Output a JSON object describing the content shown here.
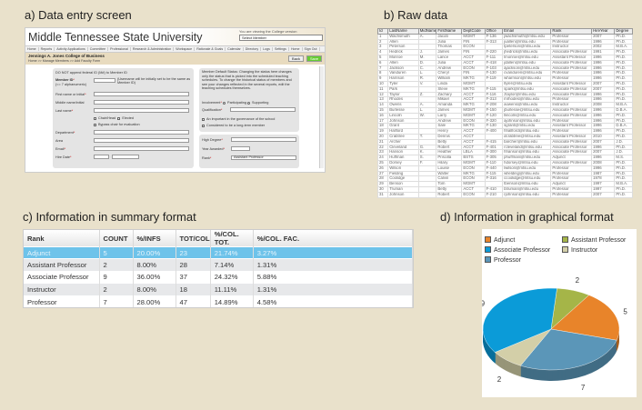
{
  "titles": {
    "a": "a) Data entry screen",
    "b": "b) Raw data",
    "c": "c) Information in summary format",
    "d": "d) Information in graphical format"
  },
  "screen": {
    "university": "Middle Tennessee State University",
    "viewing_note": "You are viewing the College version",
    "member_select": "Select Member",
    "nav": [
      "Home",
      "Reports",
      "Activity Applications",
      "Committee",
      "Professional",
      "Research & Administration",
      "Workspace",
      "Rationale & Goals",
      "Calendar",
      "Directory",
      "Logs",
      "Settings",
      "Home",
      "Sign Out"
    ],
    "college": "Jennings A. Jones College of Business",
    "breadcrumb": "Home >> Manage Members >> Add Faculty Form",
    "back": "Back",
    "save": "Save",
    "note": "DO NOT append federal ID (M#) to Member ID",
    "member_id": "Member ID",
    "member_id_hint": "(<= 7 alphanumeric)",
    "username_note": "(Username will be initially set to be the same as Member ID)",
    "first_name": "First name or initial",
    "middle_name": "Middle name/initial",
    "last_name": "Last name",
    "chair": "Chair/Head",
    "elected": "Elected",
    "bypass": "Bypass chair for evaluation",
    "department": "Department",
    "area": "Area",
    "email": "Email",
    "hire_date": "Hire Date",
    "status_note": "Member Default Status: Changing the status here changes only the status that is picked into the scheduled teaching schedules. To change the historical status of members and see your changes reflected in the several reports, edit the teaching schedules themselves.",
    "involvement": "Involvement",
    "participating": "Participating",
    "supporting": "Supporting",
    "qualification": "Qualification",
    "governance": "An important in the governance of the school",
    "long_term": "Considered to be a long-term member",
    "high_degree": "High Degree",
    "year_awarded": "Year Awarded",
    "rank": "Rank",
    "rank_value": "Assistant Professor"
  },
  "raw": {
    "headers": [
      "Id",
      "LastName",
      "MidName",
      "FirstName",
      "DeptCode",
      "Office",
      "Email",
      "Rank",
      "HireYear",
      "Degree"
    ],
    "rows": [
      [
        "1",
        "Wachsmuth",
        "A.",
        "Jacob",
        "MGMT",
        "F-136",
        "jwachsmuth@mtsu.edu",
        "Professor",
        "2007",
        "Ph.D."
      ],
      [
        "2",
        "Allen",
        "",
        "Julia",
        "FIN",
        "F-313",
        "juallen@mtsu.edu",
        "Professor",
        "1996",
        "Ph.D."
      ],
      [
        "3",
        "Peterson",
        "",
        "Thomas",
        "ECON",
        "",
        "tpeterson@mtsu.edu",
        "Instructor",
        "2002",
        "M.B.A."
      ],
      [
        "4",
        "Hedrick",
        "J.",
        "James",
        "FIN",
        "F-220",
        "jhedrick@mtsu.edu",
        "Associate Professor",
        "1991",
        "Ph.D."
      ],
      [
        "5",
        "Monroe",
        "M.",
        "Lance",
        "ACCT",
        "F-111",
        "lmonroe@mtsu.edu",
        "Assistant Professor",
        "1996",
        "Ph.D."
      ],
      [
        "6",
        "Allen",
        "D.",
        "Julia",
        "ACCT",
        "F-418",
        "jdallen@mtsu.edu",
        "Associate Professor",
        "1996",
        "Ph.D."
      ],
      [
        "7",
        "Jackson",
        "C.",
        "Andrew",
        "ECON",
        "F-103",
        "ajackson@mtsu.edu",
        "Associate Professor",
        "1996",
        "Ph.D."
      ],
      [
        "8",
        "Vanduren",
        "L.",
        "Cheryl",
        "FIN",
        "F-130",
        "cvanduren@mtsu.edu",
        "Professor",
        "1996",
        "Ph.D."
      ],
      [
        "9",
        "Harrison",
        "R.",
        "William",
        "MKTG",
        "F-119",
        "wharrison@mtsu.edu",
        "Professor",
        "1996",
        "Ph.D."
      ],
      [
        "10",
        "Tyler",
        "V.",
        "Linda",
        "MGMT",
        "",
        "ltyler@mtsu.edu",
        "Assistant Professor",
        "2007",
        "Ph.D."
      ],
      [
        "11",
        "Park",
        "",
        "Steve",
        "MKTG",
        "F-115",
        "spark@mtsu.edu",
        "Associate Professor",
        "2007",
        "Ph.D."
      ],
      [
        "12",
        "Taylor",
        "Z.",
        "Zachary",
        "ACCT",
        "F-116",
        "ztaylor@mtsu.edu",
        "Associate Professor",
        "1996",
        "Ph.D."
      ],
      [
        "13",
        "Rhodes",
        "",
        "Mikael",
        "ACCT",
        "F-313",
        "mrhodes@mtsu.edu",
        "Professor",
        "1996",
        "Ph.D."
      ],
      [
        "14",
        "Owens",
        "A.",
        "Amanda",
        "MKTG",
        "F-208",
        "aowens@mtsu.edu",
        "Instructor",
        "2008",
        "M.B.A."
      ],
      [
        "15",
        "Burlesse",
        "L.",
        "James",
        "MGMT",
        "F-150",
        "jburlesse@mtsu.edu",
        "Associate Professor",
        "1996",
        "D.B.A."
      ],
      [
        "16",
        "Lincoln",
        "W.",
        "Larry",
        "MGMT",
        "F-120",
        "llincoln@mtsu.edu",
        "Associate Professor",
        "1996",
        "Ph.D."
      ],
      [
        "17",
        "Johnson",
        "",
        "Andrew",
        "ECON",
        "F-320",
        "ajohnson@mtsu.edu",
        "Professor",
        "1996",
        "Ph.D."
      ],
      [
        "18",
        "Grant",
        "",
        "Sale",
        "MKTG",
        "F-130",
        "sgrant@mtsu.edu",
        "Assistant Professor",
        "1996",
        "D.B.A."
      ],
      [
        "19",
        "Hallford",
        "",
        "Henry",
        "ACCT",
        "F-400",
        "hhallford@mtsu.edu",
        "Professor",
        "1996",
        "Ph.D."
      ],
      [
        "20",
        "Crabtree",
        "T.",
        "Dennis",
        "ACCT",
        "",
        "dcrabtree@mtsu.edu",
        "Assistant Professor",
        "2010",
        "Ph.D."
      ],
      [
        "21",
        "Archer",
        "",
        "Betty",
        "ACCT",
        "F-415",
        "barcher@mtsu.edu",
        "Associate Professor",
        "2007",
        "J.D."
      ],
      [
        "22",
        "Cleveland",
        "G.",
        "Robert",
        "ACCT",
        "F-401",
        "rcleveland@mtsu.edu",
        "Associate Professor",
        "1996",
        "Ph.D."
      ],
      [
        "23",
        "Hanson",
        "K.",
        "Heather",
        "LBLA",
        "F-300",
        "hhanson@mtsu.edu",
        "Associate Professor",
        "2007",
        "J.D."
      ],
      [
        "24",
        "Huffman",
        "S.",
        "Priscilla",
        "BSTS",
        "F-305",
        "phuffman@mtsu.edu",
        "Adjunct",
        "1996",
        "M.S."
      ],
      [
        "25",
        "Dorsey",
        "F.",
        "Hilary",
        "MGMT",
        "F-110",
        "hdorsey@mtsu.edu",
        "Associate Professor",
        "2008",
        "Ph.D."
      ],
      [
        "26",
        "Wilson",
        "",
        "Louise",
        "ECON",
        "F-440",
        "lwilson@mtsu.edu",
        "Professor",
        "1996",
        "Ph.D."
      ],
      [
        "27",
        "Fielding",
        "",
        "Walter",
        "MKTG",
        "F-115",
        "wfielding@mtsu.edu",
        "Professor",
        "1987",
        "Ph.D."
      ],
      [
        "28",
        "Coolidge",
        "",
        "Calvin",
        "ECON",
        "F-316",
        "ccoolidge@mtsu.edu",
        "Professor",
        "1978",
        "Ph.D."
      ],
      [
        "29",
        "Benson",
        "",
        "Tom",
        "MGMT",
        "",
        "tbenson@mtsu.edu",
        "Adjunct",
        "1997",
        "M.B.A."
      ],
      [
        "30",
        "Truman",
        "",
        "Betty",
        "ACCT",
        "F-410",
        "btruman@mtsu.edu",
        "Professor",
        "1997",
        "Ph.D."
      ],
      [
        "31",
        "Johnson",
        "",
        "Robert",
        "ECON",
        "F-210",
        "rjohnson@mtsu.edu",
        "Professor",
        "2007",
        "Ph.D."
      ]
    ]
  },
  "summary": {
    "headers": [
      "Rank",
      "COUNT",
      "%/INFS",
      "TOT/COL",
      "%/COL. TOT.",
      "%/COL. FAC."
    ],
    "rows": [
      [
        "Adjunct",
        "5",
        "20.00%",
        "23",
        "21.74%",
        "3.27%"
      ],
      [
        "Assistant Professor",
        "2",
        "8.00%",
        "28",
        "7.14%",
        "1.31%"
      ],
      [
        "Associate Professor",
        "9",
        "36.00%",
        "37",
        "24.32%",
        "5.88%"
      ],
      [
        "Instructor",
        "2",
        "8.00%",
        "18",
        "11.11%",
        "1.31%"
      ],
      [
        "Professor",
        "7",
        "28.00%",
        "47",
        "14.89%",
        "4.58%"
      ]
    ],
    "selected_row": 0
  },
  "chart_data": {
    "type": "pie",
    "style": "3d",
    "legend": "top",
    "categories": [
      "Adjunct",
      "Assistant Professor",
      "Associate Professor",
      "Instructor",
      "Professor"
    ],
    "values": [
      5,
      2,
      9,
      2,
      7
    ],
    "colors": [
      "#e8842a",
      "#a5b548",
      "#0b9bd8",
      "#d3cfa8",
      "#5b96b8"
    ],
    "data_labels": [
      "5",
      "2",
      "9",
      "2",
      "7"
    ]
  }
}
